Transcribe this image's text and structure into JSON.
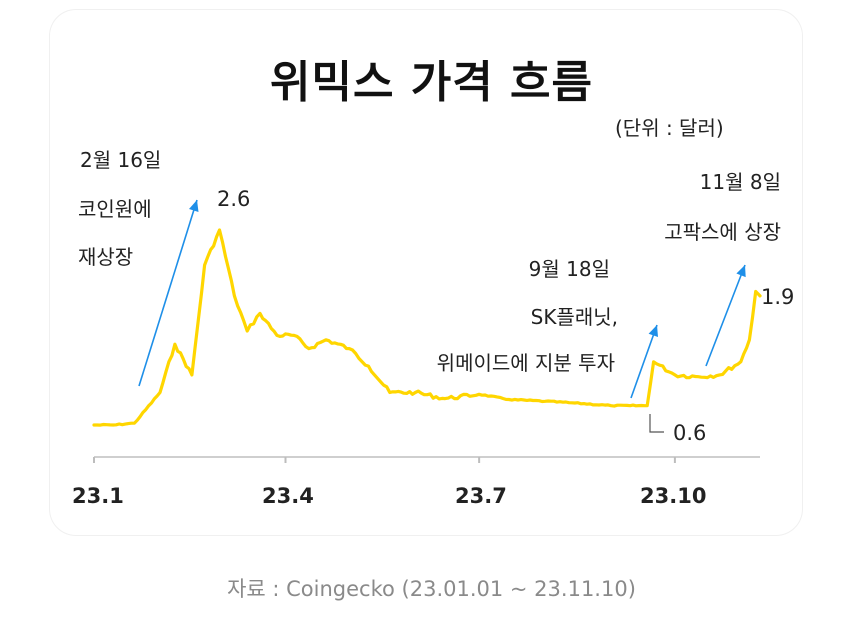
{
  "chart_data": {
    "type": "line",
    "title": "위믹스 가격 흐름",
    "unit_label": "(단위 : 달러)",
    "xlabel": "",
    "ylabel": "",
    "x_ticks": [
      "23.1",
      "23.4",
      "23.7",
      "23.10"
    ],
    "color": "#ffd600",
    "arrow_color": "#1e8fe8",
    "series": [
      {
        "x": [
          "2023-01-01",
          "2023-01-10",
          "2023-01-20",
          "2023-02-01",
          "2023-02-08",
          "2023-02-16",
          "2023-02-22",
          "2023-03-01",
          "2023-03-08",
          "2023-03-14",
          "2023-03-20",
          "2023-03-28",
          "2023-04-05",
          "2023-04-12",
          "2023-04-20",
          "2023-05-01",
          "2023-05-10",
          "2023-05-20",
          "2023-06-01",
          "2023-06-15",
          "2023-07-01",
          "2023-07-15",
          "2023-08-01",
          "2023-08-15",
          "2023-09-01",
          "2023-09-10",
          "2023-09-18",
          "2023-09-21",
          "2023-10-01",
          "2023-10-12",
          "2023-10-22",
          "2023-11-01",
          "2023-11-05",
          "2023-11-08",
          "2023-11-10"
        ],
        "y": [
          0.38,
          0.38,
          0.4,
          0.75,
          1.3,
          0.95,
          2.2,
          2.6,
          1.85,
          1.45,
          1.65,
          1.4,
          1.4,
          1.25,
          1.35,
          1.25,
          1.05,
          0.75,
          0.75,
          0.68,
          0.73,
          0.67,
          0.65,
          0.63,
          0.6,
          0.6,
          0.6,
          1.1,
          0.95,
          0.93,
          0.95,
          1.1,
          1.35,
          1.9,
          1.85
        ]
      }
    ],
    "annotations": [
      {
        "lines": [
          "2월 16일",
          "코인원에",
          "재상장"
        ]
      },
      {
        "lines": [
          "9월 18일",
          "SK플래닛,",
          "위메이드에 지분 투자"
        ]
      },
      {
        "lines": [
          "11월 8일",
          "고팍스에 상장"
        ]
      }
    ],
    "value_labels": [
      "2.6",
      "0.6",
      "1.9"
    ]
  },
  "source": "자료 : Coingecko (23.01.01 ~ 23.11.10)"
}
